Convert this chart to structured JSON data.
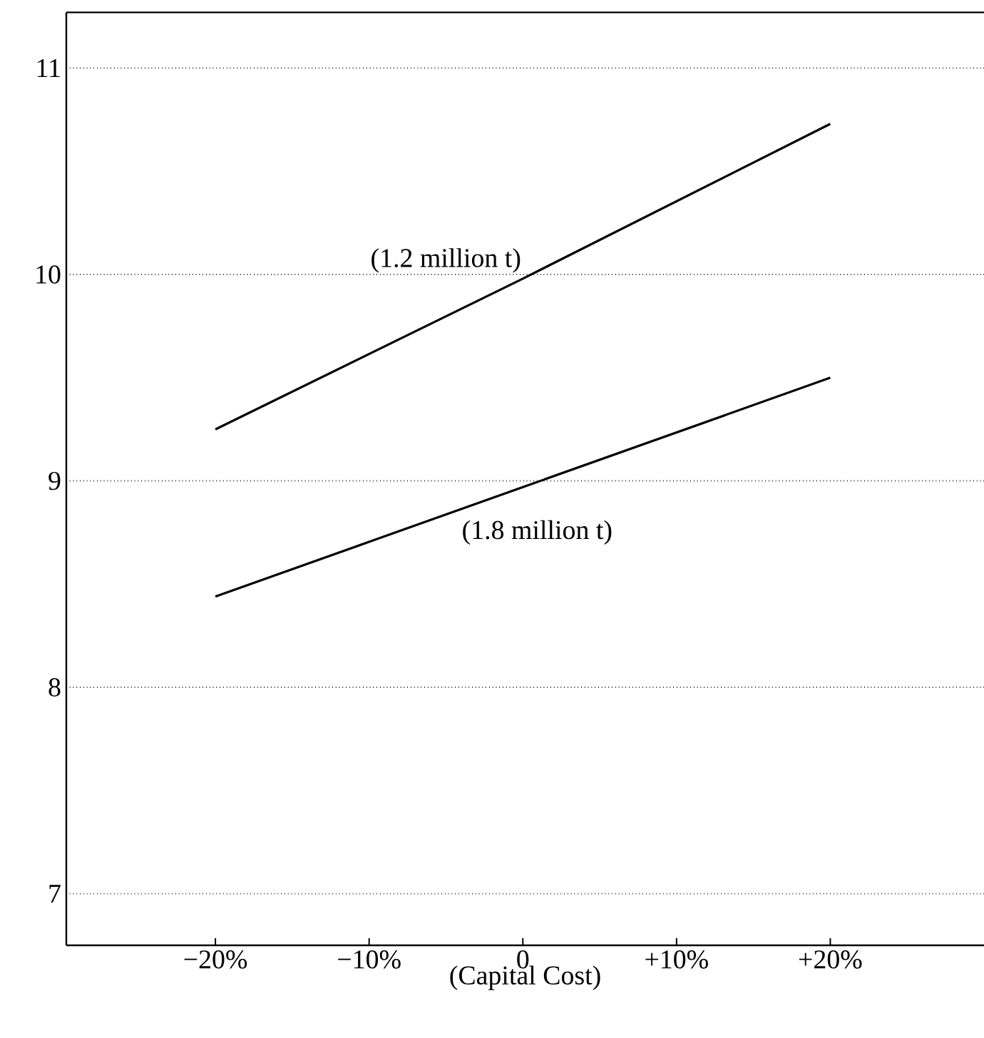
{
  "chart_data": {
    "type": "line",
    "xlabel": "(Capital Cost)",
    "x": [
      -20,
      0,
      20
    ],
    "series": [
      {
        "name": "(1.2 million t)",
        "color": "#000000",
        "values": [
          9.25,
          9.98,
          10.73
        ]
      },
      {
        "name": "(1.8 million t)",
        "color": "#000000",
        "values": [
          8.44,
          8.97,
          9.5
        ]
      }
    ],
    "xlim": [
      -29.7,
      30
    ],
    "ylim": [
      6.75,
      11.27
    ],
    "xticks": [
      {
        "value": -20,
        "label": "−20%"
      },
      {
        "value": -10,
        "label": "−10%"
      },
      0,
      {
        "value": 10,
        "label": "+10%"
      },
      {
        "value": 20,
        "label": "+20%"
      }
    ],
    "yticks": [
      7,
      8,
      9,
      10,
      11
    ],
    "grid": "y",
    "legend": false,
    "marker": "none",
    "line_style": "solid"
  }
}
